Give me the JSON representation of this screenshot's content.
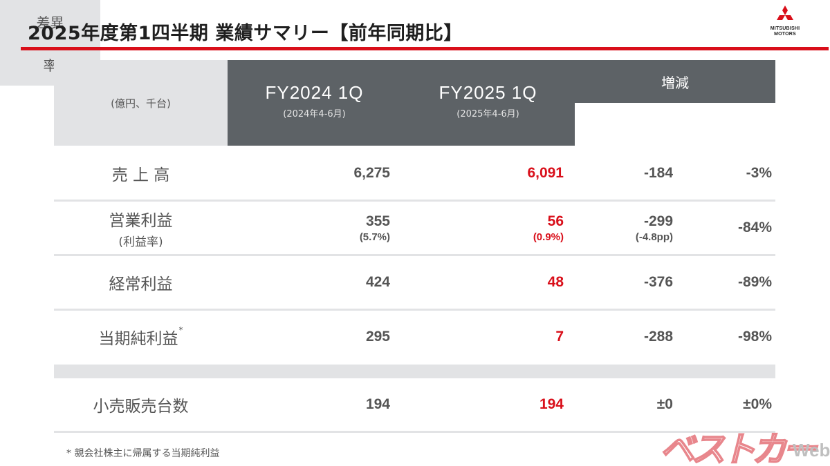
{
  "header": {
    "title": "2025年度第1四半期 業績サマリー【前年同期比】",
    "logo_line1": "MITSUBISHI",
    "logo_line2": "MOTORS"
  },
  "table": {
    "unit": "(億円、千台)",
    "col_prev": {
      "label": "FY2024 1Q",
      "period": "(2024年4-6月)"
    },
    "col_cur": {
      "label": "FY2025 1Q",
      "period": "(2025年4-6月)"
    },
    "col_change": "増減",
    "col_diff": "差異",
    "col_rate": "率",
    "rows": [
      {
        "label": "売 上 高",
        "prev": "6,275",
        "cur": "6,091",
        "diff": "-184",
        "rate": "-3%"
      },
      {
        "label": "営業利益",
        "label_sub": "(利益率)",
        "prev": "355",
        "prev_sub": "(5.7%)",
        "cur": "56",
        "cur_sub": "(0.9%)",
        "diff": "-299",
        "diff_sub": "(-4.8pp)",
        "rate": "-84%"
      },
      {
        "label": "経常利益",
        "prev": "424",
        "cur": "48",
        "diff": "-376",
        "rate": "-89%"
      },
      {
        "label": "当期純利益",
        "label_mark": "*",
        "prev": "295",
        "cur": "7",
        "diff": "-288",
        "rate": "-98%"
      },
      {
        "label": "小売販売台数",
        "prev": "194",
        "cur": "194",
        "diff": "±0",
        "rate": "±0%"
      }
    ]
  },
  "footnote": "* 親会社株主に帰属する当期純利益",
  "watermark": {
    "main": "ベストカー",
    "suffix": "Web"
  },
  "colors": {
    "accent_red": "#d90f1a",
    "header_dark": "#5d6266",
    "header_light": "#e2e3e5"
  }
}
